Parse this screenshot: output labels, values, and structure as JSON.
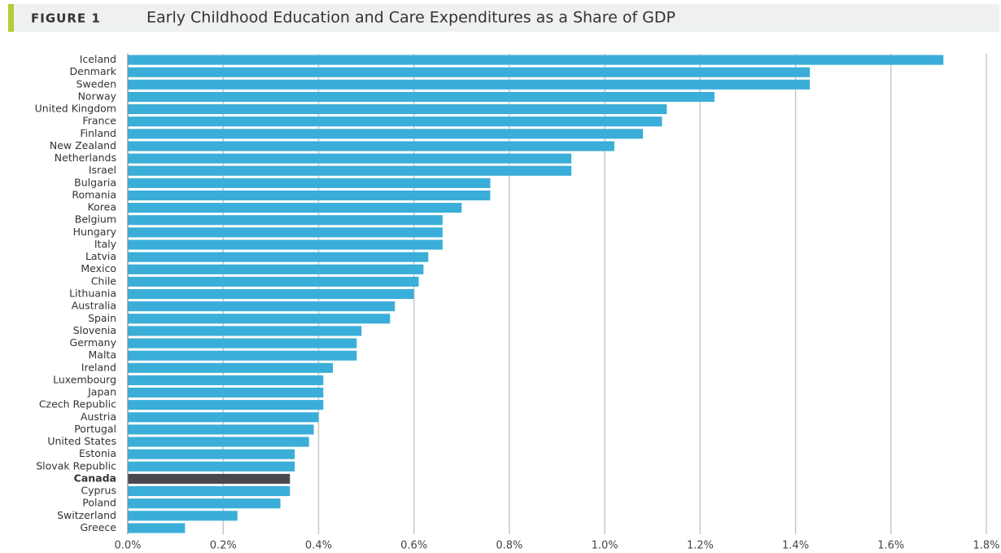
{
  "chart_data": {
    "type": "bar",
    "orientation": "horizontal",
    "figure_label": "FIGURE 1",
    "title": "Early Childhood Education and Care Expenditures as a Share of GDP",
    "categories": [
      "Iceland",
      "Denmark",
      "Sweden",
      "Norway",
      "United Kingdom",
      "France",
      "Finland",
      "New Zealand",
      "Netherlands",
      "Israel",
      "Bulgaria",
      "Romania",
      "Korea",
      "Belgium",
      "Hungary",
      "Italy",
      "Latvia",
      "Mexico",
      "Chile",
      "Lithuania",
      "Australia",
      "Spain",
      "Slovenia",
      "Germany",
      "Malta",
      "Ireland",
      "Luxembourg",
      "Japan",
      "Czech Republic",
      "Austria",
      "Portugal",
      "United States",
      "Estonia",
      "Slovak Republic",
      "Canada",
      "Cyprus",
      "Poland",
      "Switzerland",
      "Greece"
    ],
    "values": [
      1.71,
      1.43,
      1.43,
      1.23,
      1.13,
      1.12,
      1.08,
      1.02,
      0.93,
      0.93,
      0.76,
      0.76,
      0.7,
      0.66,
      0.66,
      0.66,
      0.63,
      0.62,
      0.61,
      0.6,
      0.56,
      0.55,
      0.49,
      0.48,
      0.48,
      0.43,
      0.41,
      0.41,
      0.41,
      0.4,
      0.39,
      0.38,
      0.35,
      0.35,
      0.34,
      0.34,
      0.32,
      0.23,
      0.12
    ],
    "color": "#3aaed8",
    "highlight": {
      "index": 34,
      "color": "#48484e"
    },
    "xlim": [
      0,
      1.8
    ],
    "xticks": [
      {
        "value": 0,
        "label": "0.0%"
      },
      {
        "value": 0.2,
        "label": "0.2%"
      },
      {
        "value": 0.4,
        "label": "0.4%"
      },
      {
        "value": 0.6,
        "label": "0.6%"
      },
      {
        "value": 0.8,
        "label": "0.8%"
      },
      {
        "value": 1.0,
        "label": "1.0%"
      },
      {
        "value": 1.2,
        "label": "1.2%"
      },
      {
        "value": 1.4,
        "label": "1.4%"
      },
      {
        "value": 1.6,
        "label": "1.6%"
      },
      {
        "value": 1.8,
        "label": "1.8%"
      }
    ],
    "grid": true
  }
}
